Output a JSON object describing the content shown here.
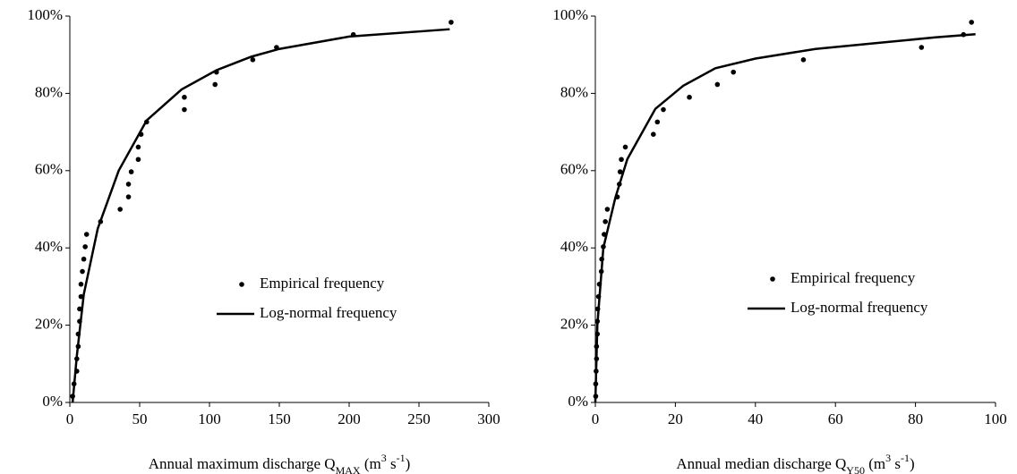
{
  "chart_data": [
    {
      "type": "scatter",
      "x_label": [
        {
          "text": "Annual maximum discharge Q",
          "style": "normal"
        },
        {
          "text": "MAX",
          "style": "sub"
        },
        {
          "text": " (m",
          "style": "normal"
        },
        {
          "text": "3",
          "style": "sup"
        },
        {
          "text": " s",
          "style": "normal"
        },
        {
          "text": "-1",
          "style": "sup"
        },
        {
          "text": ")",
          "style": "normal"
        }
      ],
      "xlim": [
        0,
        300
      ],
      "xticks": [
        0,
        50,
        100,
        150,
        200,
        250,
        300
      ],
      "ylim": [
        0,
        100
      ],
      "yticks": [
        {
          "value": 0,
          "label": "0%"
        },
        {
          "value": 20,
          "label": "20%"
        },
        {
          "value": 40,
          "label": "40%"
        },
        {
          "value": 60,
          "label": "60%"
        },
        {
          "value": 80,
          "label": "80%"
        },
        {
          "value": 100,
          "label": "100%"
        }
      ],
      "series": [
        {
          "name": "Empirical frequency",
          "type": "scatter",
          "color": "#000000",
          "x": [
            2,
            3,
            5,
            5,
            6,
            6,
            7,
            7,
            8,
            8,
            9,
            10,
            11,
            12,
            22,
            36,
            42,
            42,
            44,
            49,
            49,
            51,
            55,
            82,
            82,
            104,
            105,
            131,
            148,
            203,
            273
          ],
          "values": [
            1.6,
            4.8,
            8.1,
            11.3,
            14.5,
            17.7,
            21,
            24.2,
            27.4,
            30.6,
            33.9,
            37.1,
            40.3,
            43.5,
            46.8,
            50,
            53.2,
            56.5,
            59.7,
            62.9,
            66.1,
            69.4,
            72.6,
            75.8,
            79,
            82.3,
            85.5,
            88.7,
            91.9,
            95.2,
            98.4
          ]
        },
        {
          "name": "Log-normal frequency",
          "type": "line",
          "color": "#000000",
          "x": [
            2,
            5,
            10,
            20,
            35,
            55,
            80,
            105,
            130,
            150,
            200,
            272
          ],
          "values": [
            0,
            12,
            28,
            45,
            60,
            73,
            81,
            86,
            89.5,
            91.5,
            94.7,
            96.6
          ]
        }
      ]
    },
    {
      "type": "scatter",
      "x_label": [
        {
          "text": "Annual median discharge Q",
          "style": "normal"
        },
        {
          "text": "Y50",
          "style": "sub"
        },
        {
          "text": " (m",
          "style": "normal"
        },
        {
          "text": "3",
          "style": "sup"
        },
        {
          "text": " s",
          "style": "normal"
        },
        {
          "text": "-1",
          "style": "sup"
        },
        {
          "text": ")",
          "style": "normal"
        }
      ],
      "xlim": [
        0,
        100
      ],
      "xticks": [
        0,
        20,
        40,
        60,
        80,
        100
      ],
      "ylim": [
        0,
        100
      ],
      "yticks": [
        {
          "value": 0,
          "label": "0%"
        },
        {
          "value": 20,
          "label": "20%"
        },
        {
          "value": 40,
          "label": "40%"
        },
        {
          "value": 60,
          "label": "60%"
        },
        {
          "value": 80,
          "label": "80%"
        },
        {
          "value": 100,
          "label": "100%"
        }
      ],
      "series": [
        {
          "name": "Empirical frequency",
          "type": "scatter",
          "color": "#000000",
          "x": [
            0.1,
            0.1,
            0.2,
            0.3,
            0.3,
            0.5,
            0.5,
            0.6,
            0.8,
            1,
            1.5,
            1.6,
            2,
            2.2,
            2.5,
            3,
            5.5,
            6,
            6.2,
            6.5,
            7.5,
            14.5,
            15.5,
            17,
            23.5,
            30.5,
            34.5,
            52,
            81.5,
            92,
            94
          ],
          "values": [
            1.6,
            4.8,
            8.1,
            11.3,
            14.5,
            17.7,
            21,
            24.2,
            27.4,
            30.6,
            33.9,
            37.1,
            40.3,
            43.5,
            46.8,
            50,
            53.2,
            56.5,
            59.7,
            62.9,
            66.1,
            69.4,
            72.6,
            75.8,
            79,
            82.3,
            85.5,
            88.7,
            91.9,
            95.2,
            98.4
          ]
        },
        {
          "name": "Log-normal frequency",
          "type": "line",
          "color": "#000000",
          "x": [
            0,
            0.5,
            2,
            5,
            8,
            15,
            22,
            30,
            40,
            55,
            70,
            85,
            95
          ],
          "values": [
            0,
            20,
            40,
            53,
            63,
            76,
            82,
            86.5,
            89,
            91.5,
            93,
            94.5,
            95.3
          ]
        }
      ]
    }
  ]
}
